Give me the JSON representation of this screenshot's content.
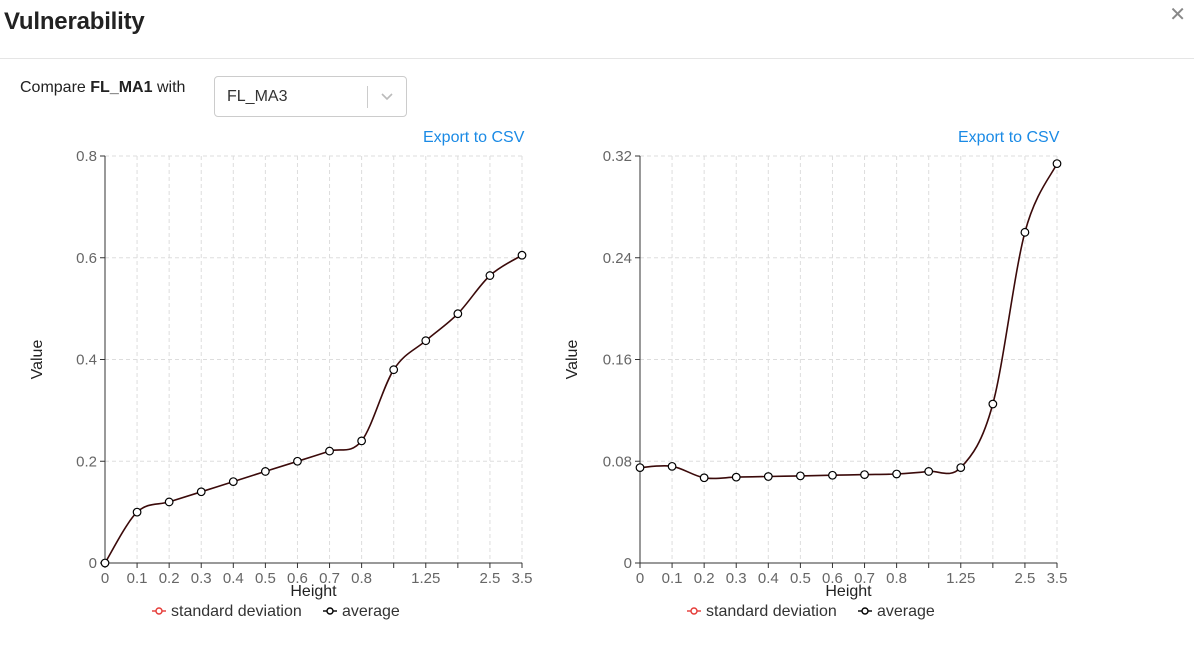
{
  "header": {
    "title": "Vulnerability",
    "close_icon": "close-icon"
  },
  "compare": {
    "prefix": "Compare",
    "entity": "FL_MA1",
    "suffix": "with"
  },
  "select": {
    "value": "FL_MA3",
    "arrow_icon": "chevron-down-icon"
  },
  "export_label": "Export to CSV",
  "colors": {
    "link": "#1a8ae5",
    "line": "#3b0a0a",
    "std_marker": "#e53935",
    "avg_marker": "#000000",
    "grid": "#dddddd"
  },
  "chart_data": [
    {
      "type": "line",
      "title": "",
      "xlabel": "Height",
      "ylabel": "Value",
      "x_ticks": [
        "0",
        "0.1",
        "0.2",
        "0.3",
        "0.4",
        "0.5",
        "0.6",
        "0.7",
        "0.8",
        "",
        "1.25",
        "",
        "2.5",
        "3.5"
      ],
      "y_ticks": [
        "0",
        "0.2",
        "0.4",
        "0.6",
        "0.8"
      ],
      "ylim": [
        0,
        0.8
      ],
      "grid": true,
      "legend_position": "bottom",
      "legend": [
        {
          "name": "standard deviation",
          "marker_color": "#e53935"
        },
        {
          "name": "average",
          "marker_color": "#000000"
        }
      ],
      "series": [
        {
          "name": "average",
          "values": [
            0.0,
            0.1,
            0.12,
            0.14,
            0.16,
            0.18,
            0.2,
            0.22,
            0.24,
            0.38,
            0.437,
            0.49,
            0.565,
            0.605
          ]
        }
      ]
    },
    {
      "type": "line",
      "title": "",
      "xlabel": "Height",
      "ylabel": "Value",
      "x_ticks": [
        "0",
        "0.1",
        "0.2",
        "0.3",
        "0.4",
        "0.5",
        "0.6",
        "0.7",
        "0.8",
        "",
        "1.25",
        "",
        "2.5",
        "3.5"
      ],
      "y_ticks": [
        "0",
        "0.08",
        "0.16",
        "0.24",
        "0.32"
      ],
      "ylim": [
        0,
        0.32
      ],
      "grid": true,
      "legend_position": "bottom",
      "legend": [
        {
          "name": "standard deviation",
          "marker_color": "#e53935"
        },
        {
          "name": "average",
          "marker_color": "#000000"
        }
      ],
      "series": [
        {
          "name": "average",
          "values": [
            0.075,
            0.076,
            0.067,
            0.0675,
            0.068,
            0.0685,
            0.069,
            0.0695,
            0.07,
            0.072,
            0.075,
            0.125,
            0.26,
            0.314
          ]
        }
      ]
    }
  ]
}
